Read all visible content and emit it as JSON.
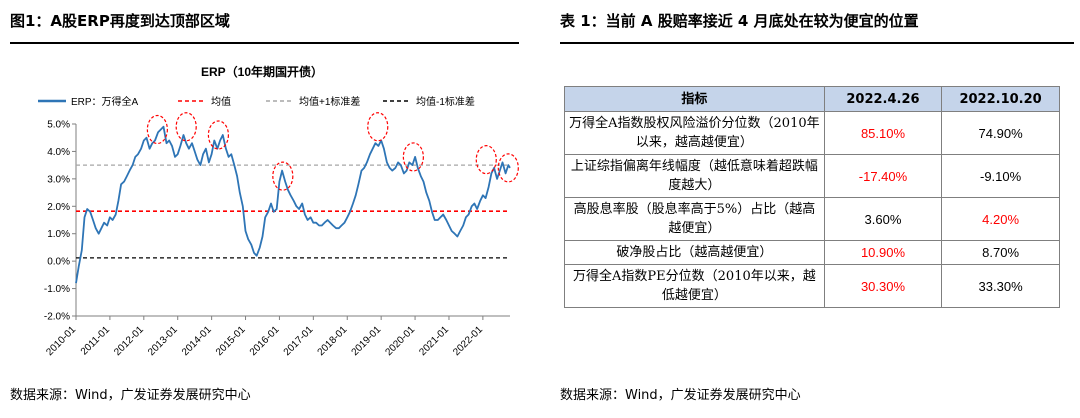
{
  "figure": {
    "heading": "图1：A股ERP再度到达顶部区域",
    "source": "数据来源：Wind，广发证券发展研究中心"
  },
  "table_panel": {
    "heading": "表 1：当前 A 股赔率接近 4 月底处在较为便宜的位置",
    "source": "数据来源：Wind，广发证券发展研究中心",
    "columns": [
      "指标",
      "2022.4.26",
      "2022.10.20"
    ],
    "rows": [
      {
        "label": "万得全A指数股权风险溢价分位数（2010年以来，越高越便宜）",
        "v1": "85.10%",
        "v2": "74.90%",
        "v1_red": true,
        "v2_red": false
      },
      {
        "label": "上证综指偏离年线幅度（越低意味着超跌幅度越大）",
        "v1": "-17.40%",
        "v2": "-9.10%",
        "v1_red": true,
        "v2_red": false
      },
      {
        "label": "高股息率股（股息率高于5%）占比（越高越便宜）",
        "v1": "3.60%",
        "v2": "4.20%",
        "v1_red": false,
        "v2_red": true
      },
      {
        "label": "破净股占比（越高越便宜）",
        "v1": "10.90%",
        "v2": "8.70%",
        "v1_red": true,
        "v2_red": false
      },
      {
        "label": "万得全A指数PE分位数（2010年以来，越低越便宜）",
        "v1": "30.30%",
        "v2": "33.30%",
        "v1_red": true,
        "v2_red": false
      }
    ]
  },
  "chart_data": {
    "type": "line",
    "title": "ERP（10年期国开债）",
    "xlabel": "",
    "ylabel": "",
    "x_ticks": [
      "2010-01",
      "2011-01",
      "2012-01",
      "2013-01",
      "2014-01",
      "2015-01",
      "2016-01",
      "2017-01",
      "2018-01",
      "2019-01",
      "2020-01",
      "2021-01",
      "2022-01"
    ],
    "x_range": [
      2010.0,
      2022.8
    ],
    "ylim": [
      -2.0,
      5.0
    ],
    "y_ticks": [
      -2.0,
      -1.0,
      0.0,
      1.0,
      2.0,
      3.0,
      4.0,
      5.0
    ],
    "y_tick_labels": [
      "-2.0%",
      "-1.0%",
      "0.0%",
      "1.0%",
      "2.0%",
      "3.0%",
      "4.0%",
      "5.0%"
    ],
    "grid": false,
    "legend_position": "top",
    "colors": {
      "erp": "#2e75b6",
      "mean": "#ff0000",
      "plus1": "#a6a6a6",
      "minus1": "#000000",
      "circle": "#ff0000"
    },
    "series": [
      {
        "name": "ERP：万得全A",
        "style": "solid",
        "x": [
          2010.0,
          2010.08,
          2010.17,
          2010.25,
          2010.33,
          2010.42,
          2010.5,
          2010.58,
          2010.67,
          2010.75,
          2010.83,
          2010.92,
          2011.0,
          2011.08,
          2011.17,
          2011.25,
          2011.33,
          2011.42,
          2011.5,
          2011.58,
          2011.67,
          2011.75,
          2011.83,
          2011.92,
          2012.0,
          2012.08,
          2012.17,
          2012.25,
          2012.33,
          2012.42,
          2012.5,
          2012.58,
          2012.67,
          2012.75,
          2012.83,
          2012.92,
          2013.0,
          2013.08,
          2013.17,
          2013.25,
          2013.33,
          2013.42,
          2013.5,
          2013.58,
          2013.67,
          2013.75,
          2013.83,
          2013.92,
          2014.0,
          2014.08,
          2014.17,
          2014.25,
          2014.33,
          2014.42,
          2014.5,
          2014.58,
          2014.67,
          2014.75,
          2014.83,
          2014.92,
          2015.0,
          2015.08,
          2015.17,
          2015.25,
          2015.33,
          2015.42,
          2015.5,
          2015.58,
          2015.67,
          2015.75,
          2015.83,
          2015.92,
          2016.0,
          2016.08,
          2016.17,
          2016.25,
          2016.33,
          2016.42,
          2016.5,
          2016.58,
          2016.67,
          2016.75,
          2016.83,
          2016.92,
          2017.0,
          2017.08,
          2017.17,
          2017.25,
          2017.33,
          2017.42,
          2017.5,
          2017.58,
          2017.67,
          2017.75,
          2017.83,
          2017.92,
          2018.0,
          2018.08,
          2018.17,
          2018.25,
          2018.33,
          2018.42,
          2018.5,
          2018.58,
          2018.67,
          2018.75,
          2018.83,
          2018.92,
          2019.0,
          2019.08,
          2019.17,
          2019.25,
          2019.33,
          2019.42,
          2019.5,
          2019.58,
          2019.67,
          2019.75,
          2019.83,
          2019.92,
          2020.0,
          2020.08,
          2020.17,
          2020.25,
          2020.33,
          2020.42,
          2020.5,
          2020.58,
          2020.67,
          2020.75,
          2020.83,
          2020.92,
          2021.0,
          2021.08,
          2021.17,
          2021.25,
          2021.33,
          2021.42,
          2021.5,
          2021.58,
          2021.67,
          2021.75,
          2021.83,
          2021.92,
          2022.0,
          2022.08,
          2022.17,
          2022.25,
          2022.33,
          2022.42,
          2022.5,
          2022.58,
          2022.67,
          2022.75,
          2022.8
        ],
        "values": [
          -0.8,
          -0.2,
          0.4,
          1.6,
          1.9,
          1.8,
          1.5,
          1.2,
          1.0,
          1.2,
          1.4,
          1.3,
          1.6,
          1.5,
          1.7,
          2.2,
          2.8,
          2.9,
          3.1,
          3.3,
          3.5,
          3.8,
          3.9,
          4.1,
          4.4,
          4.5,
          4.1,
          4.3,
          4.4,
          4.7,
          4.8,
          4.9,
          4.3,
          4.4,
          4.2,
          3.8,
          3.9,
          4.2,
          4.6,
          4.3,
          4.1,
          4.3,
          4.0,
          3.7,
          3.5,
          3.9,
          4.1,
          3.6,
          3.9,
          4.4,
          4.1,
          4.4,
          4.6,
          4.1,
          3.8,
          3.9,
          3.5,
          3.1,
          2.5,
          2.0,
          1.1,
          0.8,
          0.6,
          0.3,
          0.2,
          0.5,
          0.9,
          1.6,
          1.8,
          2.1,
          1.8,
          1.9,
          2.9,
          3.3,
          2.9,
          2.6,
          2.4,
          2.2,
          2.0,
          1.9,
          2.1,
          1.7,
          1.5,
          1.6,
          1.4,
          1.4,
          1.3,
          1.3,
          1.4,
          1.5,
          1.4,
          1.3,
          1.2,
          1.2,
          1.3,
          1.4,
          1.6,
          1.8,
          2.1,
          2.4,
          2.8,
          3.3,
          3.4,
          3.6,
          3.9,
          4.1,
          4.3,
          4.2,
          4.4,
          4.1,
          3.6,
          3.4,
          3.3,
          3.4,
          3.6,
          3.5,
          3.2,
          3.3,
          3.6,
          3.5,
          3.8,
          3.4,
          3.1,
          2.9,
          2.5,
          2.2,
          1.8,
          1.5,
          1.5,
          1.6,
          1.7,
          1.5,
          1.3,
          1.1,
          1.0,
          0.9,
          1.1,
          1.3,
          1.6,
          1.7,
          2.0,
          2.1,
          1.9,
          2.2,
          2.4,
          2.3,
          2.7,
          3.2,
          3.4,
          3.0,
          3.3,
          3.6,
          3.2,
          3.5,
          3.4
        ]
      },
      {
        "name": "均值",
        "style": "dashed",
        "value": 1.82
      },
      {
        "name": "均值+1标准差",
        "style": "dashed",
        "value": 3.5
      },
      {
        "name": "均值-1标准差",
        "style": "dashed",
        "value": 0.12
      }
    ],
    "annotations": [
      {
        "type": "circle",
        "x": 2012.4,
        "y": 4.8
      },
      {
        "type": "circle",
        "x": 2013.25,
        "y": 4.9
      },
      {
        "type": "circle",
        "x": 2014.2,
        "y": 4.6
      },
      {
        "type": "circle",
        "x": 2016.1,
        "y": 3.1
      },
      {
        "type": "circle",
        "x": 2018.9,
        "y": 4.9
      },
      {
        "type": "circle",
        "x": 2019.95,
        "y": 3.8
      },
      {
        "type": "circle",
        "x": 2022.1,
        "y": 3.7
      },
      {
        "type": "circle",
        "x": 2022.75,
        "y": 3.4
      }
    ]
  }
}
